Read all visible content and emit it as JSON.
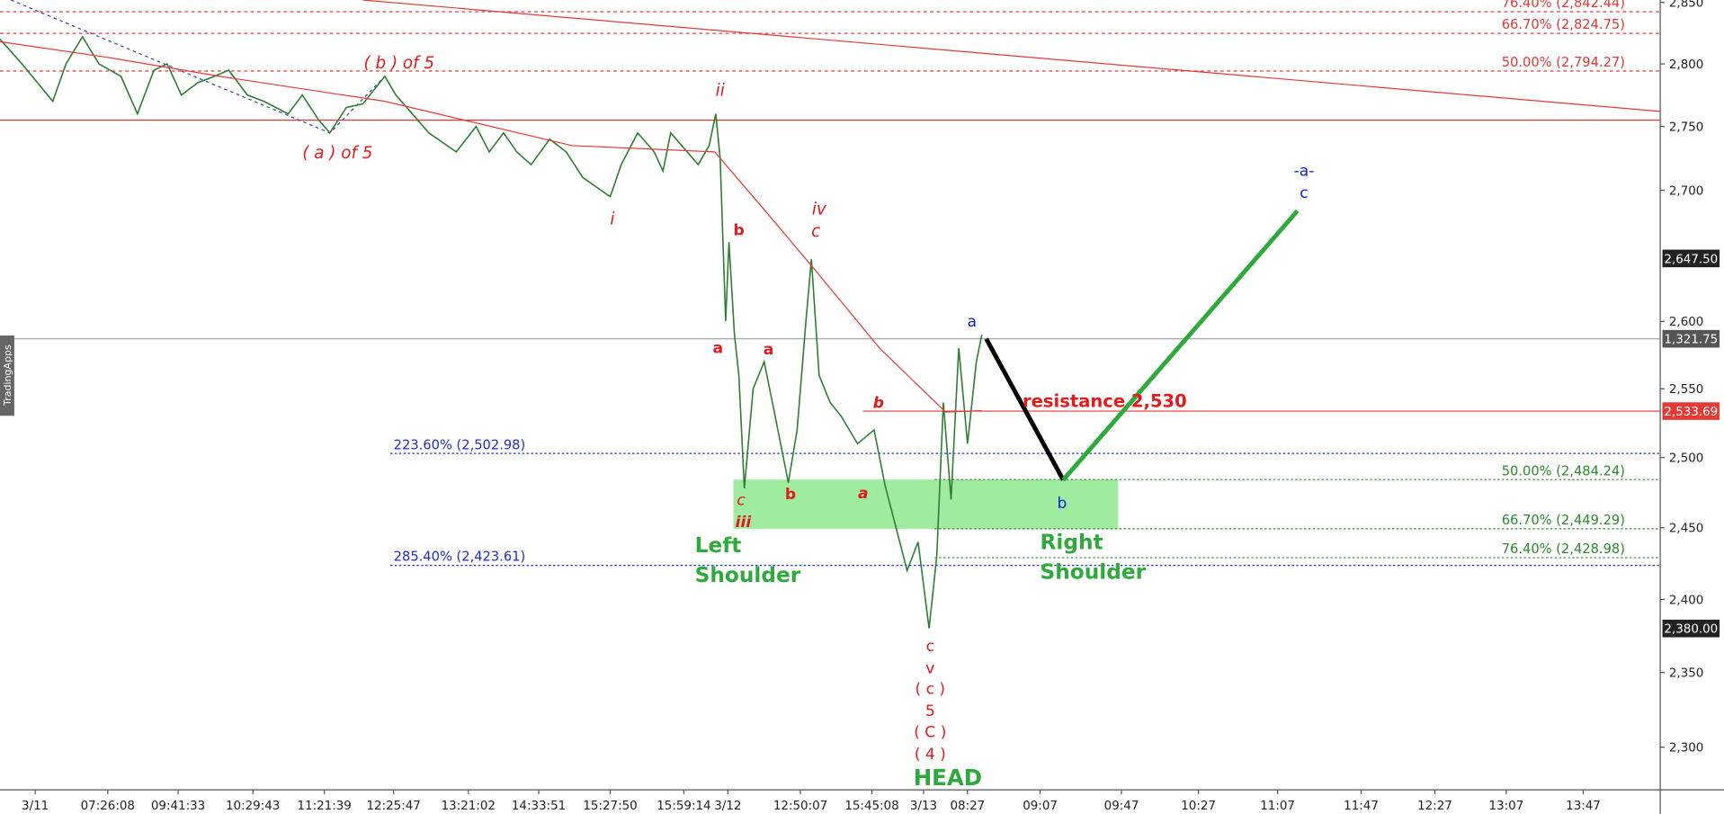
{
  "chart_data": {
    "type": "line",
    "log": true,
    "xlim": [
      0,
      1510
    ],
    "ylim": [
      2272,
      2852
    ],
    "yticks": [
      {
        "value": 2300,
        "label": "2,300"
      },
      {
        "value": 2350,
        "label": "2,350"
      },
      {
        "value": 2400,
        "label": "2,400"
      },
      {
        "value": 2450,
        "label": "2,450"
      },
      {
        "value": 2500,
        "label": "2,500"
      },
      {
        "value": 2550,
        "label": "2,550"
      },
      {
        "value": 2600,
        "label": "2,600"
      },
      {
        "value": 2700,
        "label": "2,700"
      },
      {
        "value": 2750,
        "label": "2,750"
      },
      {
        "value": 2800,
        "label": "2,800"
      },
      {
        "value": 2850,
        "label": "2,850"
      }
    ],
    "xticks": [
      {
        "value": 32,
        "label": "3/11"
      },
      {
        "value": 98,
        "label": "07:26:08"
      },
      {
        "value": 162,
        "label": "09:41:33"
      },
      {
        "value": 230,
        "label": "10:29:43"
      },
      {
        "value": 295,
        "label": "11:21:39"
      },
      {
        "value": 358,
        "label": "12:25:47"
      },
      {
        "value": 426,
        "label": "13:21:02"
      },
      {
        "value": 490,
        "label": "14:33:51"
      },
      {
        "value": 555,
        "label": "15:27:50"
      },
      {
        "value": 622,
        "label": "15:59:14"
      },
      {
        "value": 662,
        "label": "3/12"
      },
      {
        "value": 728,
        "label": "12:50:07"
      },
      {
        "value": 793,
        "label": "15:45:08"
      },
      {
        "value": 840,
        "label": "3/13"
      },
      {
        "value": 880,
        "label": "08:27"
      },
      {
        "value": 946,
        "label": "09:07"
      },
      {
        "value": 1020,
        "label": "09:47"
      },
      {
        "value": 1090,
        "label": "10:27"
      },
      {
        "value": 1162,
        "label": "11:07"
      },
      {
        "value": 1238,
        "label": "11:47"
      },
      {
        "value": 1305,
        "label": "12:27"
      },
      {
        "value": 1370,
        "label": "13:07"
      },
      {
        "value": 1440,
        "label": "13:47"
      }
    ],
    "series": [
      {
        "name": "price",
        "color": "#2e7d32",
        "width": 1.3,
        "x": [
          0,
          20,
          48,
          60,
          75,
          90,
          110,
          125,
          140,
          152,
          165,
          180,
          195,
          208,
          225,
          240,
          262,
          275,
          290,
          300,
          315,
          330,
          350,
          360,
          375,
          390,
          415,
          433,
          445,
          458,
          470,
          483,
          500,
          515,
          530,
          555,
          565,
          580,
          595,
          603,
          610,
          625,
          635,
          645,
          651,
          655,
          660,
          663,
          668,
          672,
          677,
          685,
          695,
          705,
          717,
          725,
          733,
          738,
          745,
          755,
          765,
          780,
          795,
          805,
          815,
          825,
          835,
          845,
          852,
          858,
          865,
          872,
          880,
          888,
          893
        ],
        "values": [
          2820,
          2800,
          2770,
          2800,
          2822,
          2800,
          2790,
          2760,
          2795,
          2800,
          2775,
          2785,
          2790,
          2795,
          2775,
          2770,
          2760,
          2775,
          2755,
          2745,
          2765,
          2768,
          2790,
          2775,
          2760,
          2745,
          2730,
          2750,
          2730,
          2745,
          2730,
          2720,
          2740,
          2730,
          2710,
          2695,
          2720,
          2745,
          2730,
          2715,
          2745,
          2730,
          2720,
          2735,
          2760,
          2725,
          2600,
          2660,
          2590,
          2560,
          2478,
          2550,
          2570,
          2530,
          2482,
          2520,
          2600,
          2647,
          2560,
          2540,
          2530,
          2510,
          2520,
          2480,
          2450,
          2420,
          2440,
          2380,
          2430,
          2540,
          2470,
          2580,
          2510,
          2570,
          2590
        ]
      },
      {
        "name": "moving average",
        "color": "#e53935",
        "width": 1,
        "x": [
          0,
          100,
          200,
          350,
          520,
          650,
          700,
          740,
          800,
          860,
          893
        ],
        "values": [
          2818,
          2805,
          2790,
          2770,
          2735,
          2730,
          2680,
          2640,
          2580,
          2533,
          2534
        ]
      }
    ],
    "lines": [
      {
        "color": "#e53935",
        "width": 1,
        "dash": "",
        "x": [
          330,
          1510
        ],
        "values": [
          2852,
          2762
        ]
      },
      {
        "color": "#3949ab",
        "width": 1,
        "dash": "3,3",
        "x": [
          10,
          300,
          350
        ],
        "values": [
          2852,
          2745,
          2790
        ]
      },
      {
        "color": "#000000",
        "width": 4,
        "dash": "",
        "x": [
          897,
          967
        ],
        "values": [
          2587,
          2484
        ]
      },
      {
        "color": "#2eaa3c",
        "width": 4,
        "dash": "",
        "x": [
          967,
          1180
        ],
        "values": [
          2484,
          2684
        ]
      }
    ],
    "zone": {
      "color": "#8ee88e",
      "x": [
        667,
        1017
      ],
      "values": [
        2484.24,
        2449.29
      ]
    },
    "levels": [
      {
        "label": "76.40% (2,842.44)",
        "value": 2842.44,
        "color": "#e53935",
        "from": 0,
        "dash": "3,3",
        "anchor": "end"
      },
      {
        "label": "66.70% (2,824.75)",
        "value": 2824.75,
        "color": "#e53935",
        "from": 0,
        "dash": "3,3",
        "anchor": "end"
      },
      {
        "label": "50.00% (2,794.27)",
        "value": 2794.27,
        "color": "#e53935",
        "from": 0,
        "dash": "3,3",
        "anchor": "end"
      },
      {
        "label": "223.60% (2,502.98)",
        "value": 2502.98,
        "color": "#1e2fd0",
        "from": 355,
        "dash": "2,2",
        "anchor": "start"
      },
      {
        "label": "285.40% (2,423.61)",
        "value": 2423.61,
        "color": "#1e2fd0",
        "from": 355,
        "dash": "2,2",
        "anchor": "start"
      },
      {
        "label": "50.00% (2,484.24)",
        "value": 2484.24,
        "color": "#2e8b2e",
        "from": 850,
        "dash": "2,2",
        "anchor": "end"
      },
      {
        "label": "66.70% (2,449.29)",
        "value": 2449.29,
        "color": "#2e8b2e",
        "from": 850,
        "dash": "2,2",
        "anchor": "end"
      },
      {
        "label": "76.40% (2,428.98)",
        "value": 2428.98,
        "color": "#2e8b2e",
        "from": 850,
        "dash": "2,2",
        "anchor": "end"
      }
    ],
    "solid_levels": [
      {
        "value": 2755,
        "color": "#e53935",
        "from": 0
      },
      {
        "value": 2533.69,
        "color": "#e53935",
        "from": 785
      }
    ],
    "price_tags": [
      {
        "label": "2,647.50",
        "value": 2647.5,
        "color": "#222222"
      },
      {
        "label": "2,533.69",
        "value": 2533.69,
        "color": "#e53935"
      },
      {
        "label": "2,380.00",
        "value": 2380,
        "color": "#222222"
      }
    ],
    "crosshair_label": "1,321.75",
    "side_tab": "TradingApps",
    "annotations": [
      "( b ) of 5",
      "( a ) of 5",
      "ii",
      "i",
      "iv",
      "c",
      "b",
      "a",
      "a",
      "c",
      "iii",
      "b",
      "b",
      "a",
      "c",
      "v",
      "( c )",
      "5",
      "( C )",
      "( 4 )",
      "HEAD",
      "Left",
      "Shoulder",
      "Right",
      "Shoulder",
      "a",
      "b",
      "-a-",
      "c",
      "resistance 2,530"
    ]
  }
}
